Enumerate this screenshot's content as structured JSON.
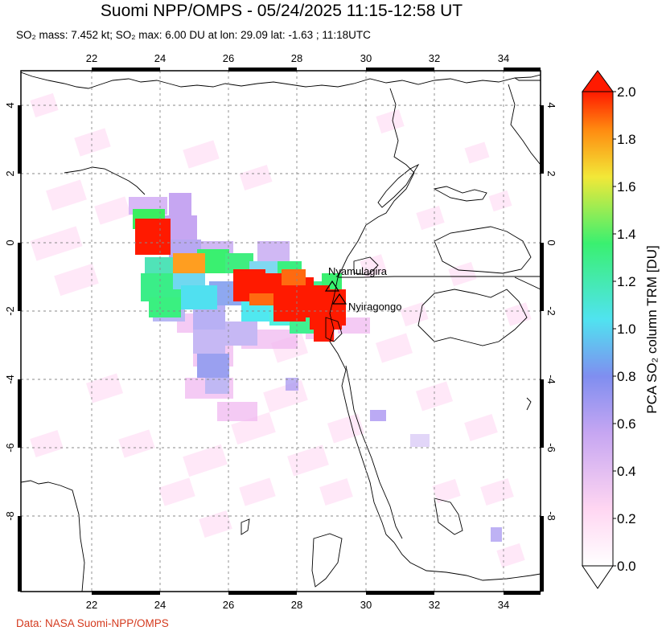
{
  "header": {
    "title": "Suomi NPP/OMPS - 05/24/2025 11:15-12:58 UT",
    "subtitle": "SO₂ mass: 7.452 kt; SO₂ max: 6.00 DU at lon: 29.09 lat: -1.63 ; 11:18UTC"
  },
  "credit": "Data: NASA Suomi-NPP/OMPS",
  "map": {
    "lon_range": [
      20,
      35
    ],
    "lat_range": [
      -10.3,
      5.2
    ],
    "lon_ticks": [
      "22",
      "24",
      "26",
      "28",
      "30",
      "32",
      "34"
    ],
    "lat_ticks": [
      "4",
      "2",
      "0",
      "-2",
      "-4",
      "-6",
      "-8"
    ],
    "gridlines": "dashed"
  },
  "volcanoes": [
    {
      "name": "Nyamulagira",
      "lon": 29.2,
      "lat": -1.41
    },
    {
      "name": "Nyiragongo",
      "lon": 29.25,
      "lat": -1.52
    }
  ],
  "colorbar": {
    "label": "PCA SO₂ column TRM [DU]",
    "min": 0.0,
    "max": 2.0,
    "ticks": [
      "2.0",
      "1.8",
      "1.6",
      "1.4",
      "1.2",
      "1.0",
      "0.8",
      "0.6",
      "0.4",
      "0.2",
      "0.0"
    ],
    "colors": [
      "#ffffff",
      "#ffd6f2",
      "#c6a6f2",
      "#7f8ef0",
      "#50e3f0",
      "#3af070",
      "#f2e838",
      "#ff8a10",
      "#ff1a00"
    ]
  }
}
